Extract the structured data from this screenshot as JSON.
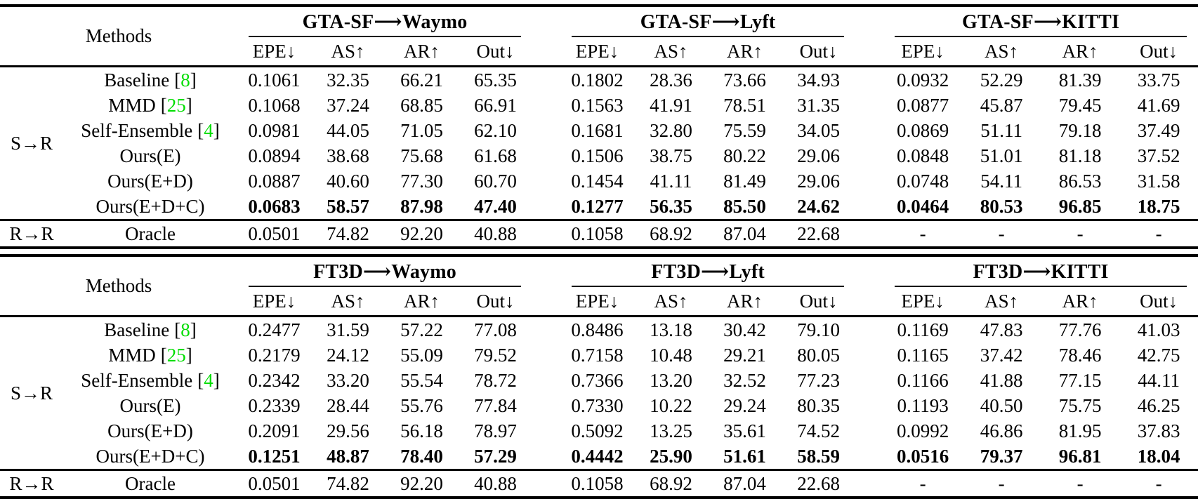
{
  "colors": {
    "background": "#ffffff",
    "text": "#000000",
    "citation_green": "#00dd00"
  },
  "citation_brackets": [
    "[",
    "]"
  ],
  "metric_headers": [
    "EPE↓",
    "AS↑",
    "AR↑",
    "Out↓"
  ],
  "tables": [
    {
      "methods_header": "Methods",
      "groups": [
        {
          "title": "GTA-SF⟶Waymo"
        },
        {
          "title": "GTA-SF⟶Lyft"
        },
        {
          "title": "GTA-SF⟶KITTI"
        }
      ],
      "row_blocks": [
        {
          "block_label": "S→R",
          "rows": [
            {
              "method": "Baseline",
              "citation": "8",
              "bold": false,
              "values": [
                "0.1061",
                "32.35",
                "66.21",
                "65.35",
                "0.1802",
                "28.36",
                "73.66",
                "34.93",
                "0.0932",
                "52.29",
                "81.39",
                "33.75"
              ]
            },
            {
              "method": "MMD",
              "citation": "25",
              "bold": false,
              "values": [
                "0.1068",
                "37.24",
                "68.85",
                "66.91",
                "0.1563",
                "41.91",
                "78.51",
                "31.35",
                "0.0877",
                "45.87",
                "79.45",
                "41.69"
              ]
            },
            {
              "method": "Self-Ensemble",
              "citation": "4",
              "bold": false,
              "values": [
                "0.0981",
                "44.05",
                "71.05",
                "62.10",
                "0.1681",
                "32.80",
                "75.59",
                "34.05",
                "0.0869",
                "51.11",
                "79.18",
                "37.49"
              ]
            },
            {
              "method": "Ours(E)",
              "citation": null,
              "bold": false,
              "values": [
                "0.0894",
                "38.68",
                "75.68",
                "61.68",
                "0.1506",
                "38.75",
                "80.22",
                "29.06",
                "0.0848",
                "51.01",
                "81.18",
                "37.52"
              ]
            },
            {
              "method": "Ours(E+D)",
              "citation": null,
              "bold": false,
              "values": [
                "0.0887",
                "40.60",
                "77.30",
                "60.70",
                "0.1454",
                "41.11",
                "81.49",
                "29.06",
                "0.0748",
                "54.11",
                "86.53",
                "31.58"
              ]
            },
            {
              "method": "Ours(E+D+C)",
              "citation": null,
              "bold": true,
              "values": [
                "0.0683",
                "58.57",
                "87.98",
                "47.40",
                "0.1277",
                "56.35",
                "85.50",
                "24.62",
                "0.0464",
                "80.53",
                "96.85",
                "18.75"
              ]
            }
          ]
        },
        {
          "block_label": "R→R",
          "rows": [
            {
              "method": "Oracle",
              "citation": null,
              "bold": false,
              "values": [
                "0.0501",
                "74.82",
                "92.20",
                "40.88",
                "0.1058",
                "68.92",
                "87.04",
                "22.68",
                "-",
                "-",
                "-",
                "-"
              ]
            }
          ]
        }
      ]
    },
    {
      "methods_header": "Methods",
      "groups": [
        {
          "title": "FT3D⟶Waymo"
        },
        {
          "title": "FT3D⟶Lyft"
        },
        {
          "title": "FT3D⟶KITTI"
        }
      ],
      "row_blocks": [
        {
          "block_label": "S→R",
          "rows": [
            {
              "method": "Baseline",
              "citation": "8",
              "bold": false,
              "values": [
                "0.2477",
                "31.59",
                "57.22",
                "77.08",
                "0.8486",
                "13.18",
                "30.42",
                "79.10",
                "0.1169",
                "47.83",
                "77.76",
                "41.03"
              ]
            },
            {
              "method": "MMD",
              "citation": "25",
              "bold": false,
              "values": [
                "0.2179",
                "24.12",
                "55.09",
                "79.52",
                "0.7158",
                "10.48",
                "29.21",
                "80.05",
                "0.1165",
                "37.42",
                "78.46",
                "42.75"
              ]
            },
            {
              "method": "Self-Ensemble",
              "citation": "4",
              "bold": false,
              "values": [
                "0.2342",
                "33.20",
                "55.54",
                "78.72",
                "0.7366",
                "13.20",
                "32.52",
                "77.23",
                "0.1166",
                "41.88",
                "77.15",
                "44.11"
              ]
            },
            {
              "method": "Ours(E)",
              "citation": null,
              "bold": false,
              "values": [
                "0.2339",
                "28.44",
                "55.76",
                "77.84",
                "0.7330",
                "10.22",
                "29.24",
                "80.35",
                "0.1193",
                "40.50",
                "75.75",
                "46.25"
              ]
            },
            {
              "method": "Ours(E+D)",
              "citation": null,
              "bold": false,
              "values": [
                "0.2091",
                "29.56",
                "56.18",
                "78.97",
                "0.5092",
                "13.25",
                "35.61",
                "74.52",
                "0.0992",
                "46.86",
                "81.95",
                "37.83"
              ]
            },
            {
              "method": "Ours(E+D+C)",
              "citation": null,
              "bold": true,
              "values": [
                "0.1251",
                "48.87",
                "78.40",
                "57.29",
                "0.4442",
                "25.90",
                "51.61",
                "58.59",
                "0.0516",
                "79.37",
                "96.81",
                "18.04"
              ]
            }
          ]
        },
        {
          "block_label": "R→R",
          "rows": [
            {
              "method": "Oracle",
              "citation": null,
              "bold": false,
              "values": [
                "0.0501",
                "74.82",
                "92.20",
                "40.88",
                "0.1058",
                "68.92",
                "87.04",
                "22.68",
                "-",
                "-",
                "-",
                "-"
              ]
            }
          ]
        }
      ]
    }
  ]
}
